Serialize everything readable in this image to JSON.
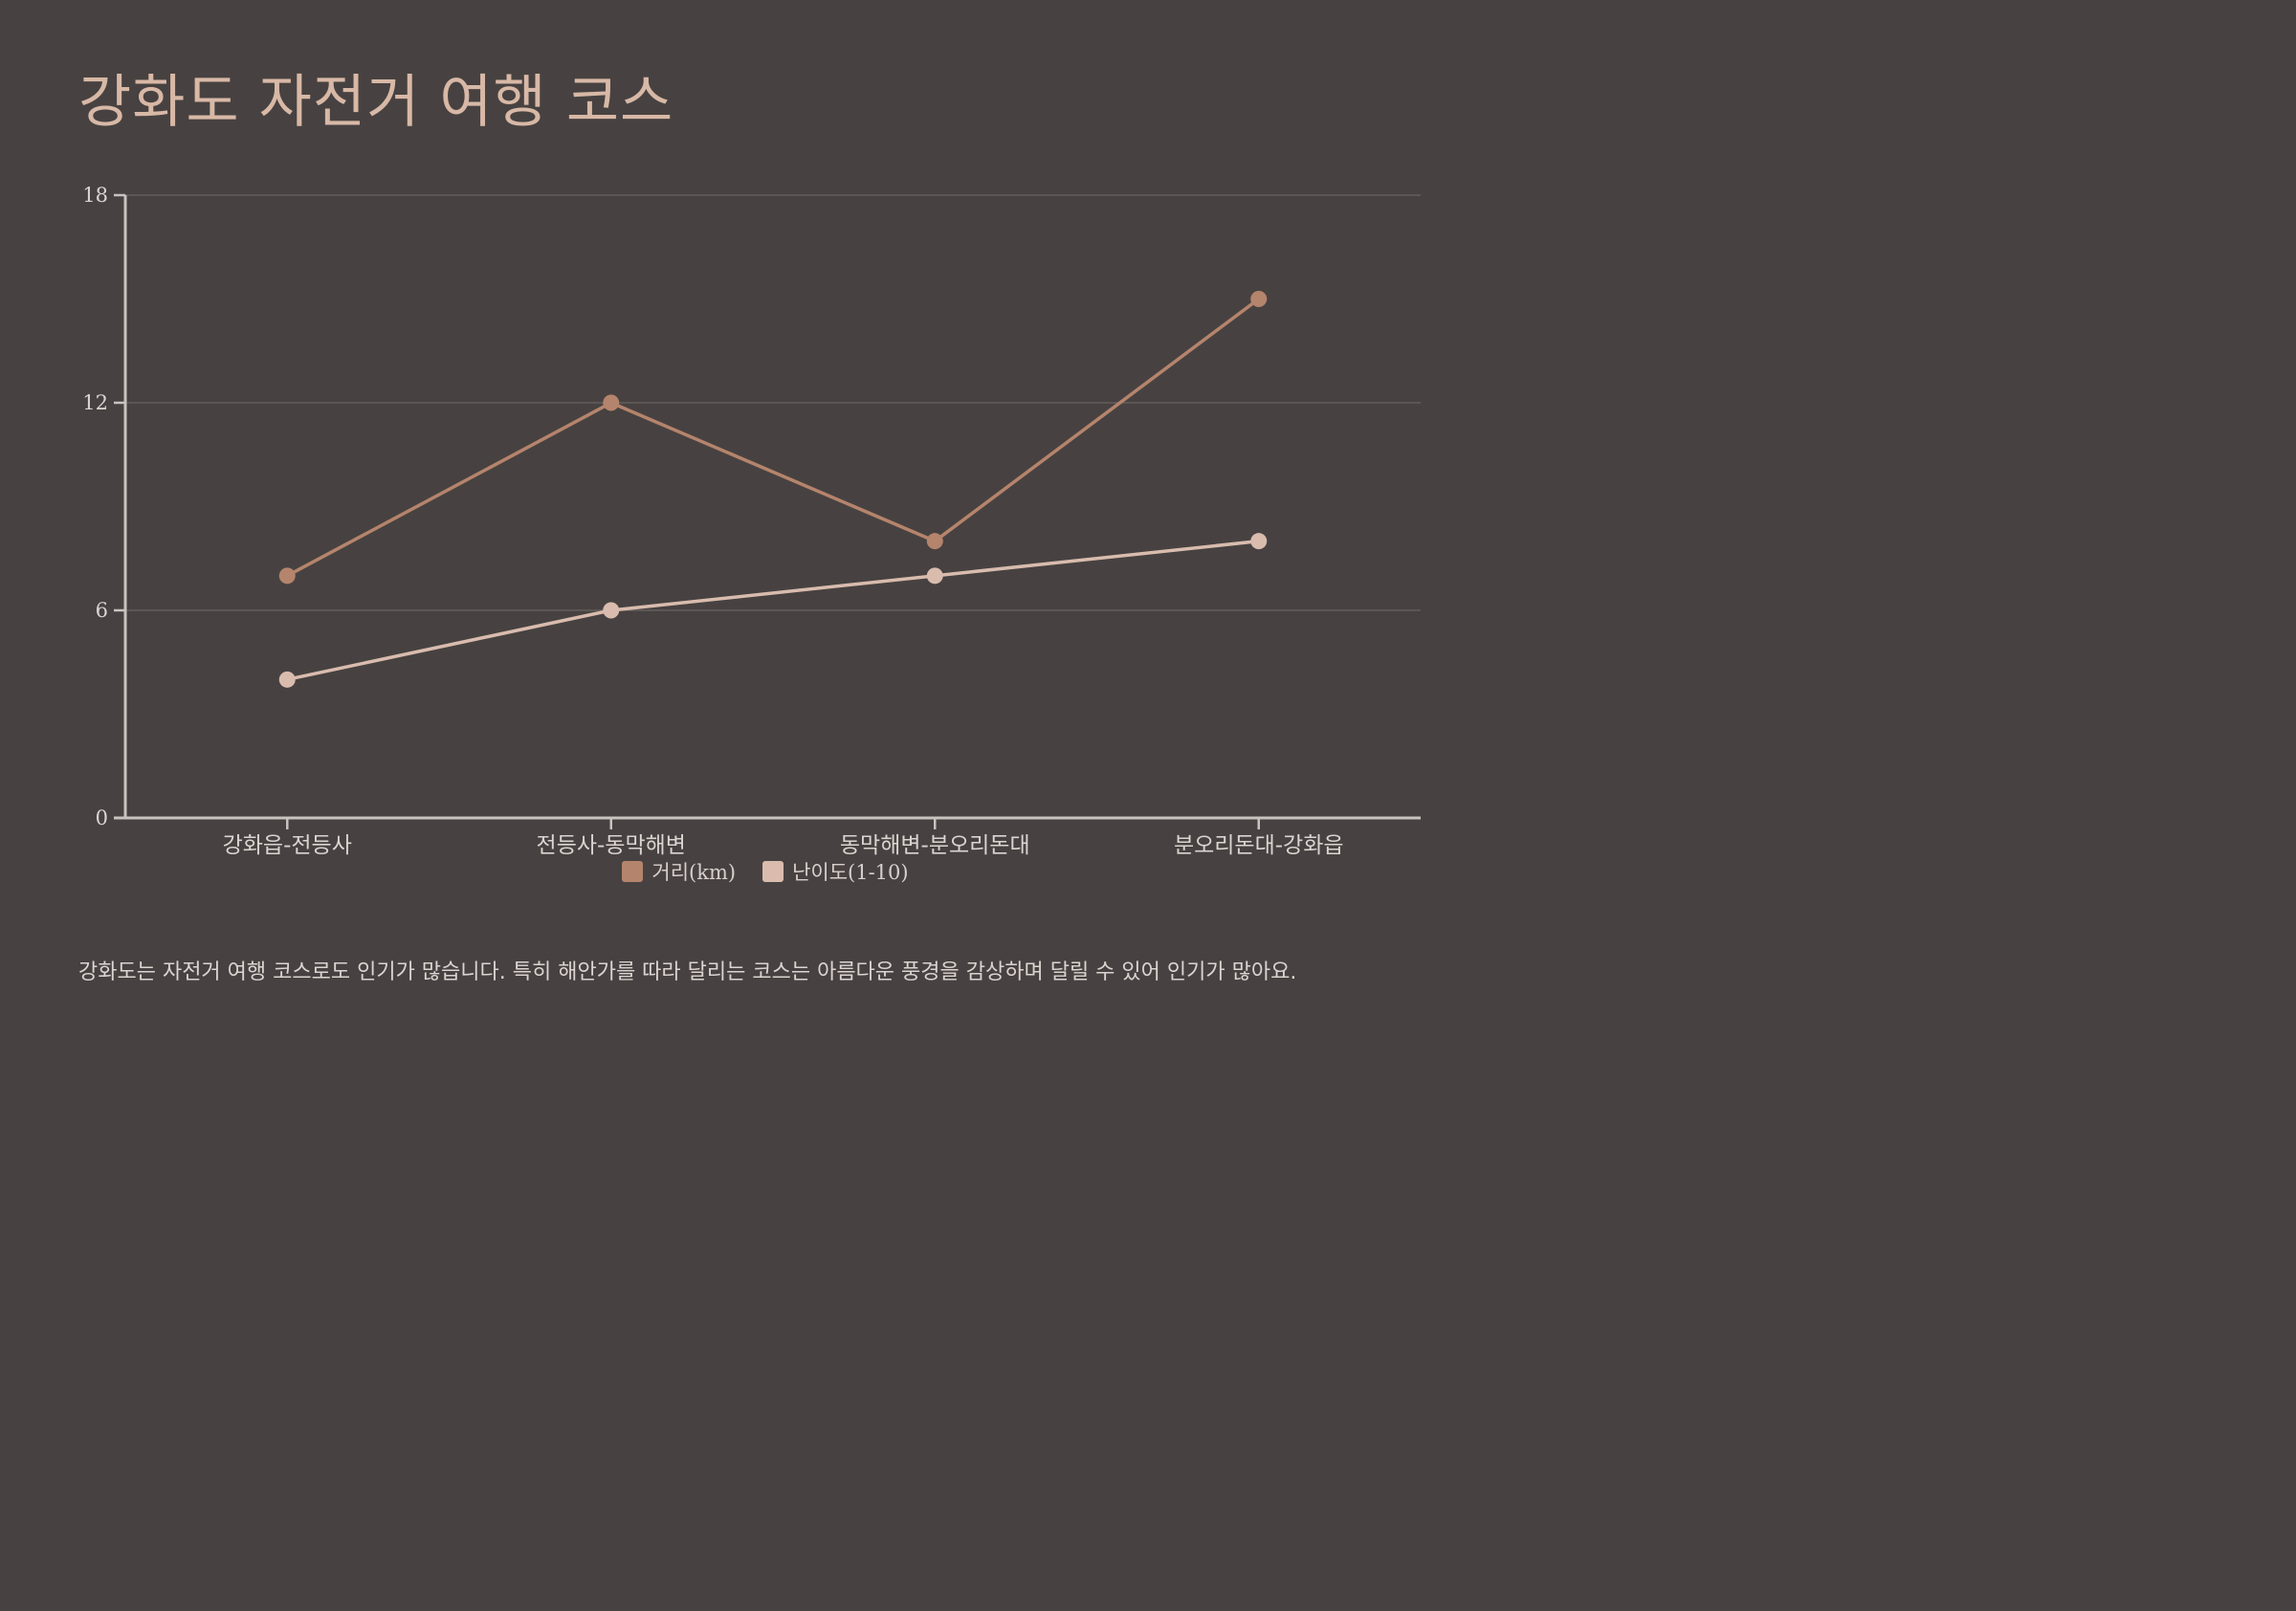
{
  "title": "강화도 자전거 여행 코스",
  "caption": "강화도는 자전거 여행 코스로도 인기가 많습니다. 특히 해안가를 따라 달리는 코스는 아름다운 풍경을 감상하며 달릴 수 있어 인기가 많아요.",
  "colors": {
    "background": "#474241",
    "title": "#d8b8a6",
    "axis": "#c9c3c0",
    "grid": "#6a6462",
    "tick_text": "#dcd4d0"
  },
  "chart_data": {
    "type": "line",
    "title": "강화도 자전거 여행 코스",
    "categories": [
      "강화읍-전등사",
      "전등사-동막해변",
      "동막해변-분오리돈대",
      "분오리돈대-강화읍"
    ],
    "series": [
      {
        "name": "거리(km)",
        "color": "#b5846c",
        "values": [
          7,
          12,
          8,
          15
        ]
      },
      {
        "name": "난이도(1-10)",
        "color": "#d9bcae",
        "values": [
          4,
          6,
          7,
          8
        ]
      }
    ],
    "ylim": [
      0,
      18
    ],
    "yticks": [
      "0",
      "6",
      "12",
      "18"
    ],
    "grid": true,
    "legend_position": "bottom-center"
  }
}
